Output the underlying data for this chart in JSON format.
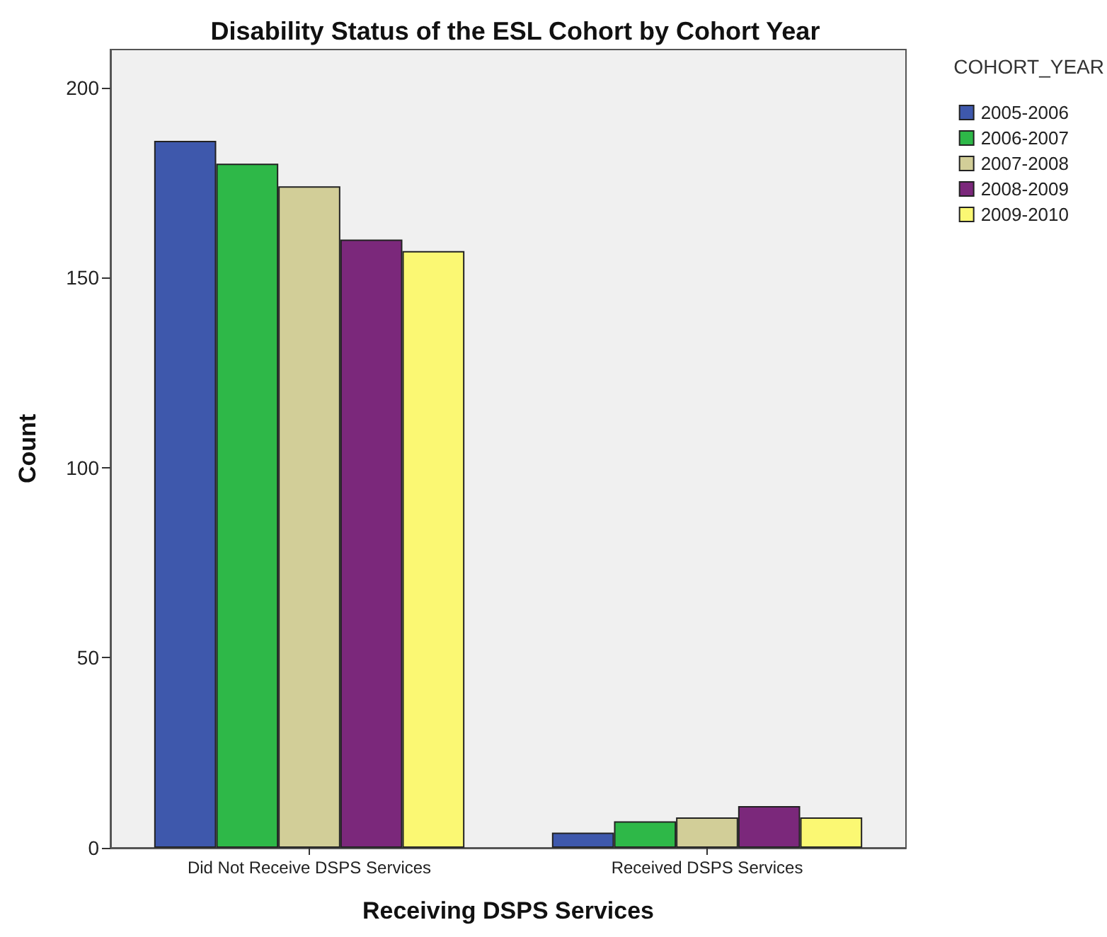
{
  "chart_data": {
    "type": "bar",
    "title": "Disability Status of the ESL Cohort by Cohort Year",
    "xlabel": "Receiving DSPS Services",
    "ylabel": "Count",
    "legend_title": "COHORT_YEAR",
    "categories": [
      "Did Not Receive DSPS Services",
      "Received DSPS Services"
    ],
    "series": [
      {
        "name": "2005-2006",
        "color": "#3e58ac",
        "values": [
          186,
          4
        ]
      },
      {
        "name": "2006-2007",
        "color": "#2eb848",
        "values": [
          180,
          7
        ]
      },
      {
        "name": "2007-2008",
        "color": "#d2ce98",
        "values": [
          174,
          8
        ]
      },
      {
        "name": "2008-2009",
        "color": "#7b287b",
        "values": [
          160,
          11
        ]
      },
      {
        "name": "2009-2010",
        "color": "#fbf873",
        "values": [
          157,
          8
        ]
      }
    ],
    "ylim": [
      0,
      210
    ],
    "yticks": [
      0,
      50,
      100,
      150,
      200
    ],
    "grid": false,
    "legend": "top right"
  }
}
